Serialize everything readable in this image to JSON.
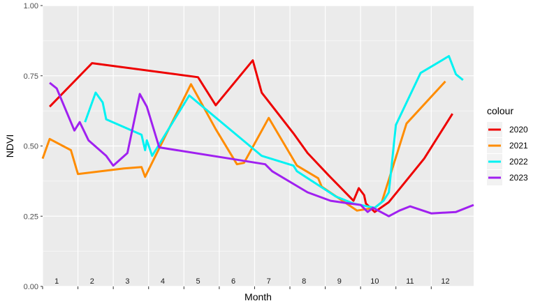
{
  "chart_data": {
    "type": "line",
    "title": "",
    "xlabel": "Month",
    "ylabel": "NDVI",
    "ylim": [
      0,
      1
    ],
    "xlim": [
      0.2,
      12.4
    ],
    "y_ticks": [
      "0.00",
      "0.25",
      "0.50",
      "0.75",
      "1.00"
    ],
    "y_tick_values": [
      0,
      0.25,
      0.5,
      0.75,
      1.0
    ],
    "month_labels": [
      "1",
      "2",
      "3",
      "4",
      "5",
      "6",
      "7",
      "8",
      "9",
      "10",
      "11",
      "12"
    ],
    "month_label_x": [
      0.6,
      1.6,
      2.6,
      3.6,
      4.6,
      5.6,
      6.6,
      7.6,
      8.6,
      9.6,
      10.6,
      11.6
    ],
    "x_tick_positions": [
      0.2,
      1.2,
      2.2,
      3.2,
      4.2,
      5.2,
      6.2,
      7.2,
      8.2,
      9.2,
      10.2,
      11.2
    ],
    "grid": true,
    "panel_background": "#ebebeb",
    "legend": {
      "title": "colour",
      "position": "right"
    },
    "series": [
      {
        "name": "2020",
        "color": "#ee0000",
        "points": [
          [
            0.4,
            0.64
          ],
          [
            1.6,
            0.795
          ],
          [
            4.6,
            0.745
          ],
          [
            5.1,
            0.645
          ],
          [
            6.15,
            0.805
          ],
          [
            6.4,
            0.69
          ],
          [
            7.3,
            0.545
          ],
          [
            7.7,
            0.475
          ],
          [
            8.3,
            0.395
          ],
          [
            9.0,
            0.305
          ],
          [
            9.15,
            0.35
          ],
          [
            9.3,
            0.325
          ],
          [
            9.35,
            0.295
          ],
          [
            9.6,
            0.265
          ],
          [
            10.0,
            0.3
          ],
          [
            11.0,
            0.455
          ],
          [
            11.8,
            0.615
          ]
        ]
      },
      {
        "name": "2021",
        "color": "#ff8c00",
        "points": [
          [
            0.2,
            0.455
          ],
          [
            0.4,
            0.525
          ],
          [
            1.0,
            0.485
          ],
          [
            1.2,
            0.4
          ],
          [
            2.5,
            0.42
          ],
          [
            3.0,
            0.425
          ],
          [
            3.1,
            0.39
          ],
          [
            4.4,
            0.72
          ],
          [
            5.1,
            0.56
          ],
          [
            5.7,
            0.435
          ],
          [
            5.9,
            0.44
          ],
          [
            6.6,
            0.6
          ],
          [
            7.4,
            0.43
          ],
          [
            8.0,
            0.385
          ],
          [
            8.1,
            0.355
          ],
          [
            9.1,
            0.27
          ],
          [
            9.6,
            0.28
          ],
          [
            9.8,
            0.3
          ],
          [
            10.5,
            0.58
          ],
          [
            11.6,
            0.73
          ]
        ]
      },
      {
        "name": "2022",
        "color": "#00f2f2",
        "points": [
          [
            1.4,
            0.585
          ],
          [
            1.7,
            0.69
          ],
          [
            1.9,
            0.655
          ],
          [
            2.0,
            0.595
          ],
          [
            3.0,
            0.54
          ],
          [
            3.1,
            0.485
          ],
          [
            3.15,
            0.52
          ],
          [
            3.3,
            0.465
          ],
          [
            4.35,
            0.68
          ],
          [
            6.4,
            0.465
          ],
          [
            7.3,
            0.43
          ],
          [
            7.4,
            0.41
          ],
          [
            8.5,
            0.32
          ],
          [
            9.0,
            0.295
          ],
          [
            9.6,
            0.28
          ],
          [
            9.85,
            0.305
          ],
          [
            10.0,
            0.335
          ],
          [
            10.2,
            0.575
          ],
          [
            10.9,
            0.76
          ],
          [
            11.7,
            0.82
          ],
          [
            11.9,
            0.755
          ],
          [
            12.1,
            0.735
          ]
        ]
      },
      {
        "name": "2023",
        "color": "#a020f0",
        "points": [
          [
            0.4,
            0.725
          ],
          [
            0.6,
            0.705
          ],
          [
            1.1,
            0.555
          ],
          [
            1.25,
            0.585
          ],
          [
            1.5,
            0.52
          ],
          [
            2.0,
            0.465
          ],
          [
            2.2,
            0.43
          ],
          [
            2.6,
            0.475
          ],
          [
            2.95,
            0.685
          ],
          [
            3.15,
            0.64
          ],
          [
            3.5,
            0.495
          ],
          [
            6.5,
            0.435
          ],
          [
            6.7,
            0.41
          ],
          [
            7.7,
            0.335
          ],
          [
            8.35,
            0.305
          ],
          [
            8.9,
            0.295
          ],
          [
            9.2,
            0.29
          ],
          [
            9.4,
            0.265
          ],
          [
            9.55,
            0.28
          ],
          [
            10.0,
            0.25
          ],
          [
            10.3,
            0.27
          ],
          [
            10.6,
            0.285
          ],
          [
            11.2,
            0.26
          ],
          [
            11.9,
            0.265
          ],
          [
            12.4,
            0.29
          ]
        ]
      }
    ]
  }
}
